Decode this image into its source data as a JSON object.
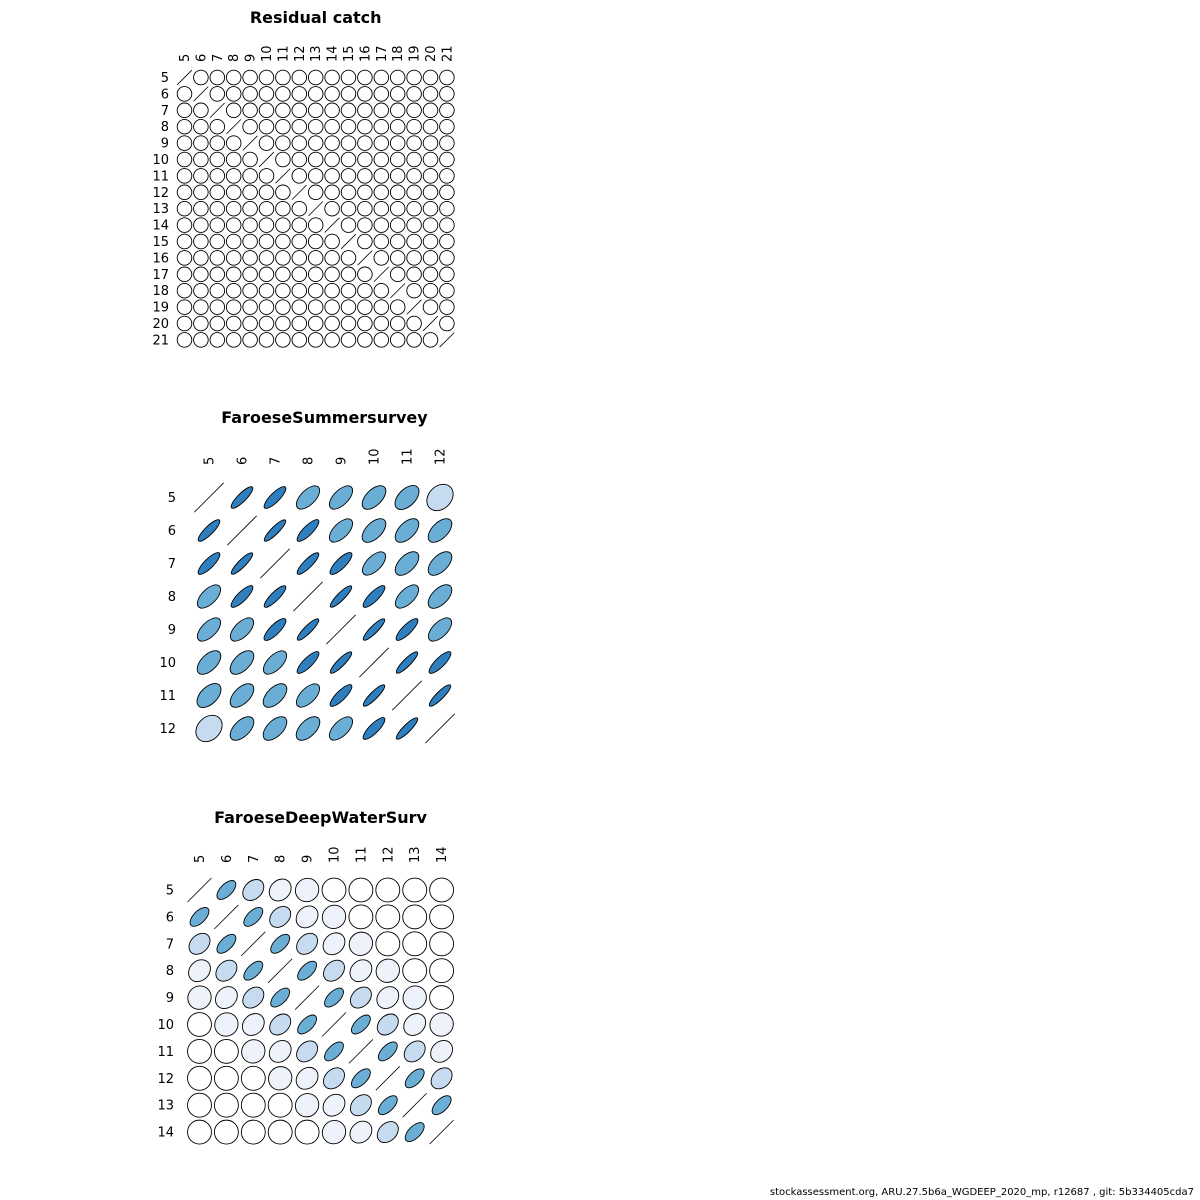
{
  "chart_data": [
    {
      "type": "heatmap",
      "subtype": "correlation-ellipse-matrix",
      "title": "Residual catch",
      "labels": [
        "5",
        "6",
        "7",
        "8",
        "9",
        "10",
        "11",
        "12",
        "13",
        "14",
        "15",
        "16",
        "17",
        "18",
        "19",
        "20",
        "21"
      ],
      "correlation": {
        "all_off_diagonal": 0
      },
      "diagonal": "slash"
    },
    {
      "type": "heatmap",
      "subtype": "correlation-ellipse-matrix",
      "title": "FaroeseSummersurvey",
      "labels": [
        "5",
        "6",
        "7",
        "8",
        "9",
        "10",
        "11",
        "12"
      ],
      "matrix": [
        [
          1.0,
          0.85,
          0.82,
          0.6,
          0.6,
          0.55,
          0.5,
          0.25
        ],
        [
          0.85,
          1.0,
          0.88,
          0.82,
          0.6,
          0.55,
          0.55,
          0.55
        ],
        [
          0.82,
          0.88,
          1.0,
          0.85,
          0.8,
          0.6,
          0.55,
          0.55
        ],
        [
          0.6,
          0.82,
          0.85,
          1.0,
          0.88,
          0.82,
          0.6,
          0.55
        ],
        [
          0.6,
          0.6,
          0.8,
          0.88,
          1.0,
          0.88,
          0.82,
          0.6
        ],
        [
          0.55,
          0.55,
          0.6,
          0.82,
          0.88,
          1.0,
          0.88,
          0.82
        ],
        [
          0.5,
          0.55,
          0.55,
          0.6,
          0.82,
          0.88,
          1.0,
          0.88
        ],
        [
          0.25,
          0.55,
          0.55,
          0.55,
          0.6,
          0.82,
          0.88,
          1.0
        ]
      ],
      "diagonal": "slash"
    },
    {
      "type": "heatmap",
      "subtype": "correlation-ellipse-matrix",
      "title": "FaroeseDeepWaterSurv",
      "labels": [
        "5",
        "6",
        "7",
        "8",
        "9",
        "10",
        "11",
        "12",
        "13",
        "14"
      ],
      "matrix": [
        [
          1.0,
          0.6,
          0.3,
          0.2,
          0.05,
          0.0,
          0.0,
          0.0,
          0.0,
          0.0
        ],
        [
          0.6,
          1.0,
          0.6,
          0.3,
          0.2,
          0.05,
          0.0,
          0.0,
          0.0,
          0.0
        ],
        [
          0.3,
          0.6,
          1.0,
          0.6,
          0.3,
          0.2,
          0.05,
          0.0,
          0.0,
          0.0
        ],
        [
          0.2,
          0.3,
          0.6,
          1.0,
          0.6,
          0.3,
          0.2,
          0.05,
          0.0,
          0.0
        ],
        [
          0.05,
          0.2,
          0.3,
          0.6,
          1.0,
          0.6,
          0.3,
          0.2,
          0.05,
          0.0
        ],
        [
          0.0,
          0.05,
          0.2,
          0.3,
          0.6,
          1.0,
          0.6,
          0.3,
          0.2,
          0.05
        ],
        [
          0.0,
          0.0,
          0.05,
          0.2,
          0.3,
          0.6,
          1.0,
          0.6,
          0.3,
          0.2
        ],
        [
          0.0,
          0.0,
          0.0,
          0.05,
          0.2,
          0.3,
          0.6,
          1.0,
          0.6,
          0.3
        ],
        [
          0.0,
          0.0,
          0.0,
          0.0,
          0.05,
          0.2,
          0.3,
          0.6,
          1.0,
          0.6
        ],
        [
          0.0,
          0.0,
          0.0,
          0.0,
          0.0,
          0.05,
          0.2,
          0.3,
          0.6,
          1.0
        ]
      ],
      "diagonal": "slash"
    }
  ],
  "colors": {
    "strong": "#2f7fbf",
    "medium": "#6aaed6",
    "light": "#c6dbef",
    "faint": "#eef2fb",
    "none": "#ffffff"
  },
  "footer": "stockassessment.org, ARU.27.5b6a_WGDEEP_2020_mp, r12687 , git: 5b334405cda7"
}
